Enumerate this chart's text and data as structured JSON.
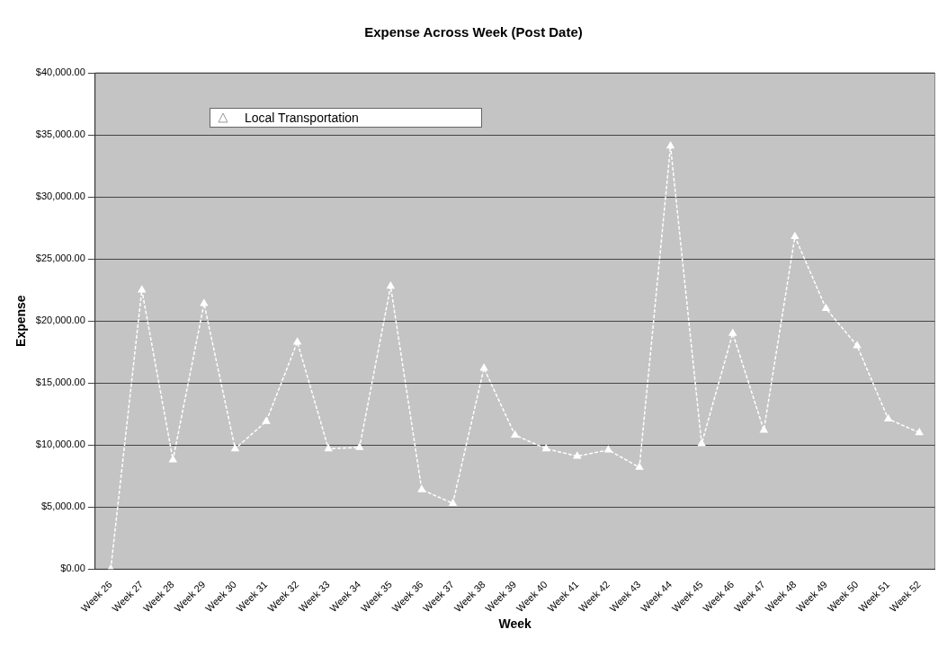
{
  "chart_data": {
    "type": "line",
    "title": "Expense Across Week (Post Date)",
    "xlabel": "Week",
    "ylabel": "Expense",
    "categories": [
      "Week 26",
      "Week 27",
      "Week 28",
      "Week 29",
      "Week 30",
      "Week 31",
      "Week 32",
      "Week 33",
      "Week 34",
      "Week 35",
      "Week 36",
      "Week 37",
      "Week 38",
      "Week 39",
      "Week 40",
      "Week 41",
      "Week 42",
      "Week 43",
      "Week 44",
      "Week 45",
      "Week 46",
      "Week 47",
      "Week 48",
      "Week 49",
      "Week 50",
      "Week 51",
      "Week 52"
    ],
    "series": [
      {
        "name": "Local Transportation",
        "color": "#ffffff",
        "values": [
          0,
          22500,
          8800,
          21400,
          9700,
          11900,
          18300,
          9700,
          9800,
          22800,
          6400,
          5300,
          16200,
          10800,
          9700,
          9100,
          9600,
          8200,
          34100,
          10100,
          19000,
          11200,
          26800,
          21000,
          18000,
          12100,
          11000
        ]
      }
    ],
    "ylim": [
      0,
      40000
    ],
    "yticks": [
      {
        "value": 0,
        "label": "$0.00"
      },
      {
        "value": 5000,
        "label": "$5,000.00"
      },
      {
        "value": 10000,
        "label": "$10,000.00"
      },
      {
        "value": 15000,
        "label": "$15,000.00"
      },
      {
        "value": 20000,
        "label": "$20,000.00"
      },
      {
        "value": 25000,
        "label": "$25,000.00"
      },
      {
        "value": 30000,
        "label": "$30,000.00"
      },
      {
        "value": 35000,
        "label": "$35,000.00"
      },
      {
        "value": 40000,
        "label": "$40,000.00"
      }
    ],
    "grid": "y",
    "legend": "top left",
    "marker": "triangle",
    "line_style": "dashed"
  }
}
